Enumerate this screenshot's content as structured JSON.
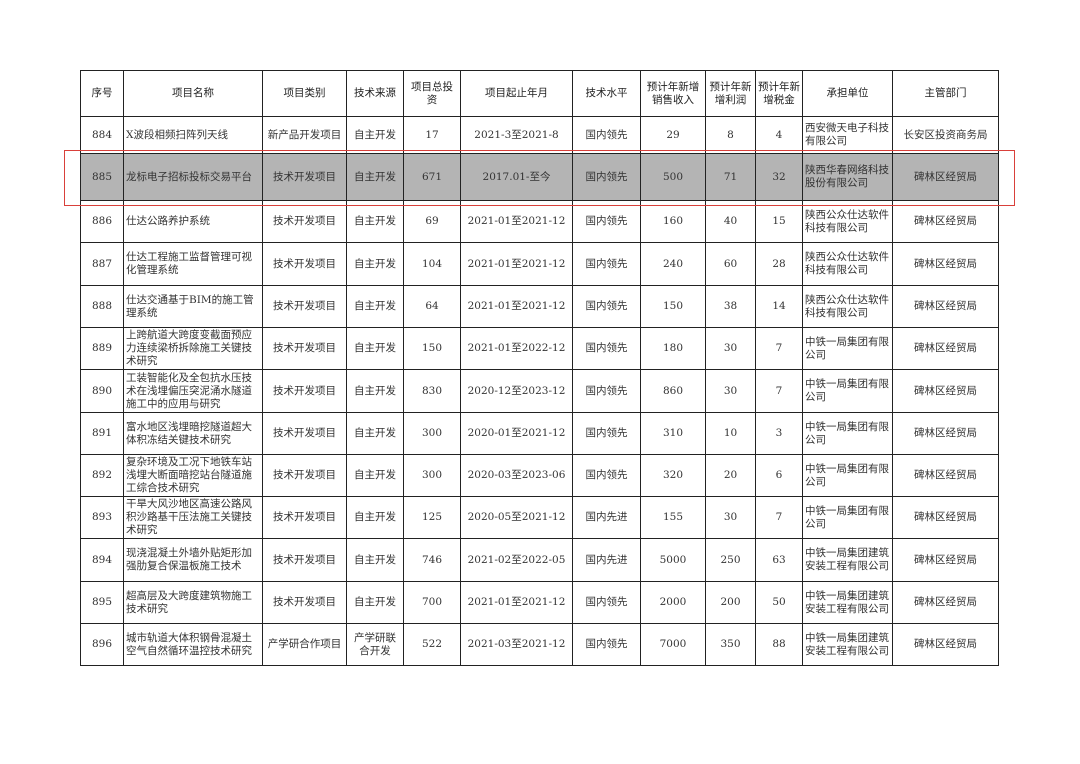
{
  "table": {
    "headers": [
      "序号",
      "项目名称",
      "项目类别",
      "技术来源",
      "项目总投资",
      "项目起止年月",
      "技术水平",
      "预计年新增销售收入",
      "预计年新增利润",
      "预计年新增税金",
      "承担单位",
      "主管部门"
    ],
    "rows": [
      [
        "884",
        "X波段相频扫阵列天线",
        "新产品开发项目",
        "自主开发",
        "17",
        "2021-3至2021-8",
        "国内领先",
        "29",
        "8",
        "4",
        "西安微天电子科技有限公司",
        "长安区投资商务局"
      ],
      [
        "885",
        "龙标电子招标投标交易平台",
        "技术开发项目",
        "自主开发",
        "671",
        "2017.01-至今",
        "国内领先",
        "500",
        "71",
        "32",
        "陕西华春网络科技股份有限公司",
        "碑林区经贸局"
      ],
      [
        "886",
        "仕达公路养护系统",
        "技术开发项目",
        "自主开发",
        "69",
        "2021-01至2021-12",
        "国内领先",
        "160",
        "40",
        "15",
        "陕西公众仕达软件科技有限公司",
        "碑林区经贸局"
      ],
      [
        "887",
        "仕达工程施工监督管理可视化管理系统",
        "技术开发项目",
        "自主开发",
        "104",
        "2021-01至2021-12",
        "国内领先",
        "240",
        "60",
        "28",
        "陕西公众仕达软件科技有限公司",
        "碑林区经贸局"
      ],
      [
        "888",
        "仕达交通基于BIM的施工管理系统",
        "技术开发项目",
        "自主开发",
        "64",
        "2021-01至2021-12",
        "国内领先",
        "150",
        "38",
        "14",
        "陕西公众仕达软件科技有限公司",
        "碑林区经贸局"
      ],
      [
        "889",
        "上跨航道大跨度变截面预应力连续梁桥拆除施工关键技术研究",
        "技术开发项目",
        "自主开发",
        "150",
        "2021-01至2022-12",
        "国内领先",
        "180",
        "30",
        "7",
        "中铁一局集团有限公司",
        "碑林区经贸局"
      ],
      [
        "890",
        "工装智能化及全包抗水压技术在浅埋偏压突泥涌水隧道施工中的应用与研究",
        "技术开发项目",
        "自主开发",
        "830",
        "2020-12至2023-12",
        "国内领先",
        "860",
        "30",
        "7",
        "中铁一局集团有限公司",
        "碑林区经贸局"
      ],
      [
        "891",
        "富水地区浅埋暗挖隧道超大体积冻结关键技术研究",
        "技术开发项目",
        "自主开发",
        "300",
        "2020-01至2021-12",
        "国内领先",
        "310",
        "10",
        "3",
        "中铁一局集团有限公司",
        "碑林区经贸局"
      ],
      [
        "892",
        "复杂环境及工况下地铁车站浅埋大断面暗挖站台隧道施工综合技术研究",
        "技术开发项目",
        "自主开发",
        "300",
        "2020-03至2023-06",
        "国内领先",
        "320",
        "20",
        "6",
        "中铁一局集团有限公司",
        "碑林区经贸局"
      ],
      [
        "893",
        "干旱大风沙地区高速公路风积沙路基干压法施工关键技术研究",
        "技术开发项目",
        "自主开发",
        "125",
        "2020-05至2021-12",
        "国内先进",
        "155",
        "30",
        "7",
        "中铁一局集团有限公司",
        "碑林区经贸局"
      ],
      [
        "894",
        "现浇混凝土外墙外贴矩形加强肋复合保温板施工技术",
        "技术开发项目",
        "自主开发",
        "746",
        "2021-02至2022-05",
        "国内先进",
        "5000",
        "250",
        "63",
        "中铁一局集团建筑安装工程有限公司",
        "碑林区经贸局"
      ],
      [
        "895",
        "超高层及大跨度建筑物施工技术研究",
        "技术开发项目",
        "自主开发",
        "700",
        "2021-01至2021-12",
        "国内领先",
        "2000",
        "200",
        "50",
        "中铁一局集团建筑安装工程有限公司",
        "碑林区经贸局"
      ],
      [
        "896",
        "城市轨道大体积钢骨混凝土空气自然循环温控技术研究",
        "产学研合作项目",
        "产学研联合开发",
        "522",
        "2021-03至2021-12",
        "国内领先",
        "7000",
        "350",
        "88",
        "中铁一局集团建筑安装工程有限公司",
        "碑林区经贸局"
      ]
    ],
    "highlighted_row": "885"
  },
  "colors": {
    "highlight_fill": "#b4b4b4",
    "annotation_box": "#d9403a"
  }
}
